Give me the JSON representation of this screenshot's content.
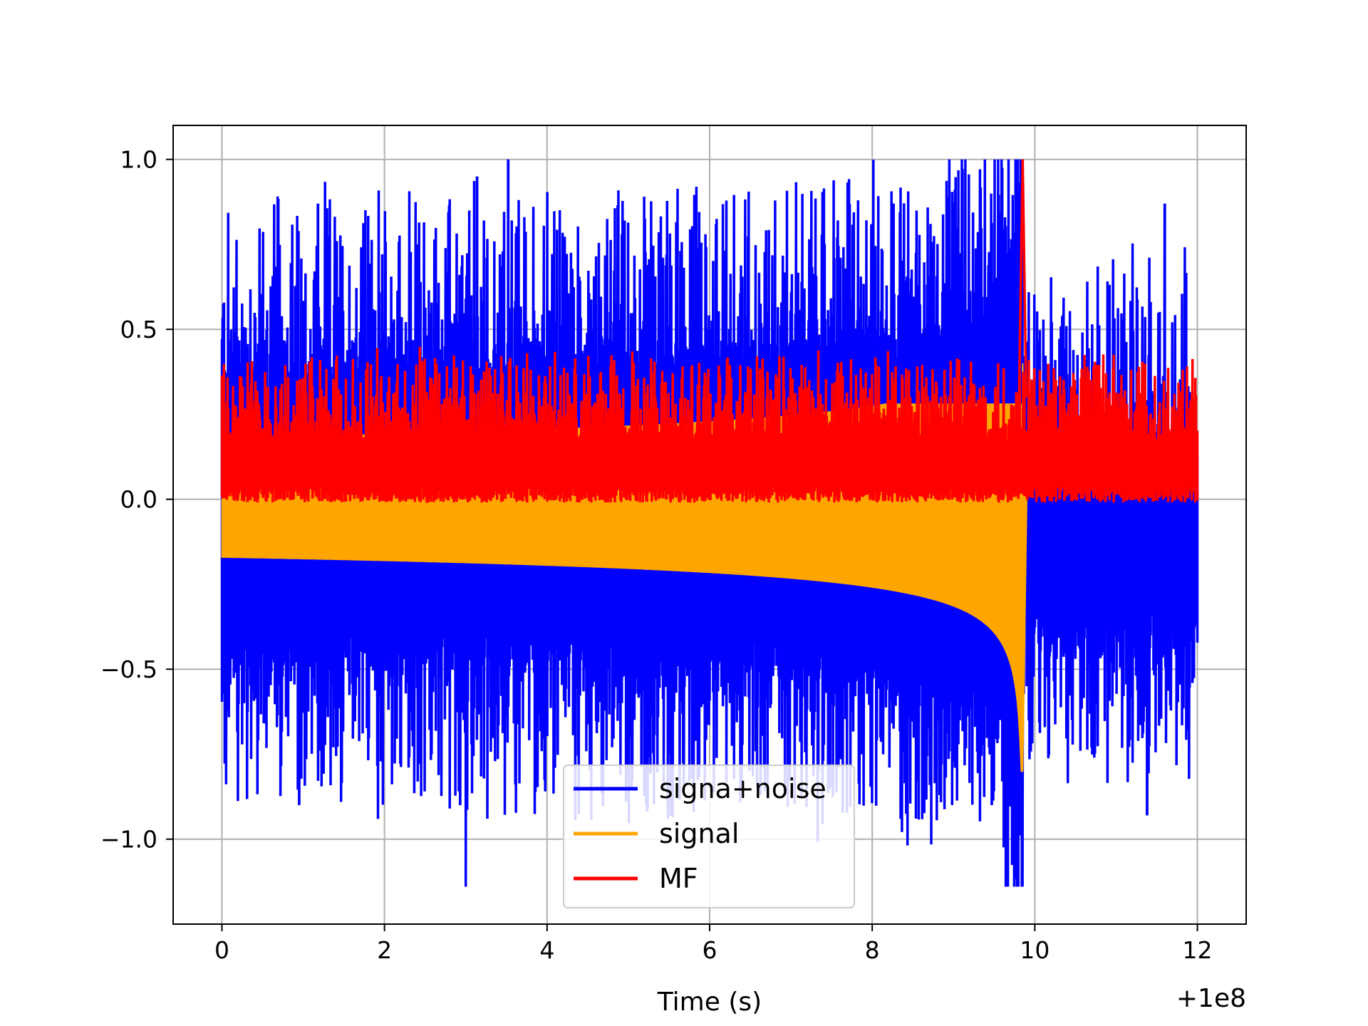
{
  "chart_data": {
    "type": "line",
    "title": "",
    "xlabel": "Time (s)",
    "ylabel": "",
    "x_offset_text": "+1e8",
    "xlim": [
      -0.6,
      12.6
    ],
    "ylim": [
      -1.25,
      1.1
    ],
    "grid": true,
    "legend_position": "lower-center",
    "x_ticks": [
      0,
      2,
      4,
      6,
      8,
      10,
      12
    ],
    "x_tick_labels": [
      "0",
      "2",
      "4",
      "6",
      "8",
      "10",
      "12"
    ],
    "y_ticks": [
      -1.0,
      -0.5,
      0.0,
      0.5,
      1.0
    ],
    "y_tick_labels": [
      "−1.0",
      "−0.5",
      "0.0",
      "0.5",
      "1.0"
    ],
    "series": [
      {
        "name": "signa+noise",
        "color": "#0000ff",
        "x_range": [
          0,
          12
        ],
        "baseline_upper": 0.3,
        "baseline_lower": -0.45,
        "max": 1.0,
        "min": -1.14,
        "peaks": [
          {
            "x": 1.18,
            "y": 0.87
          },
          {
            "x": 3.14,
            "y": 0.95
          },
          {
            "x": 3.52,
            "y": 1.0
          },
          {
            "x": 9.8,
            "y": 0.92
          },
          {
            "x": 11.6,
            "y": 0.87
          },
          {
            "x": 3.0,
            "y": -1.14
          },
          {
            "x": 2.93,
            "y": -0.9
          },
          {
            "x": 0.95,
            "y": -0.9
          },
          {
            "x": 9.47,
            "y": -0.9
          },
          {
            "x": 11.38,
            "y": -0.93
          }
        ]
      },
      {
        "name": "signal",
        "color": "#ffa500",
        "x_range": [
          0,
          9.9
        ],
        "envelope_upper_start": 0.18,
        "envelope_lower_start": -0.17,
        "peak": {
          "x": 9.85,
          "y": 0.28
        },
        "trough": {
          "x": 9.85,
          "y": -0.8
        }
      },
      {
        "name": "MF",
        "color": "#ff0000",
        "x_range": [
          0,
          12
        ],
        "baseline": 0.1,
        "peak": {
          "x": 9.85,
          "y": 1.0
        }
      }
    ]
  }
}
